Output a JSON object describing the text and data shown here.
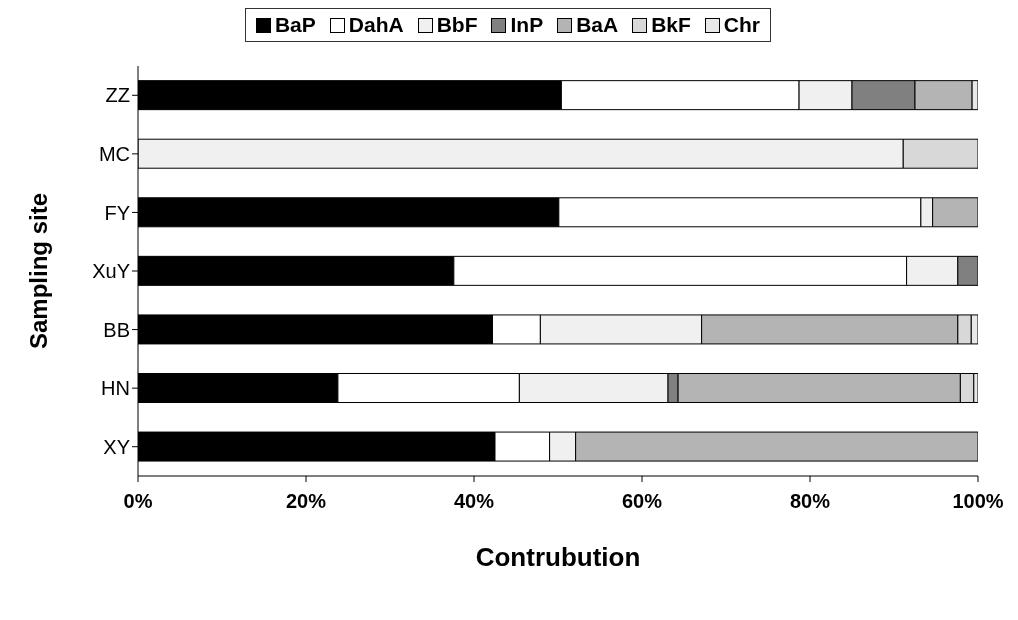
{
  "chart_data": {
    "type": "bar",
    "orientation": "horizontal",
    "stacked": true,
    "xlabel": "Contrubution",
    "ylabel": "Sampling site",
    "categories": [
      "ZZ",
      "MC",
      "FY",
      "XuY",
      "BB",
      "HN",
      "XY"
    ],
    "series": [
      {
        "name": "BaP",
        "color": "#000000",
        "values": [
          50.4,
          null,
          50.1,
          37.6,
          42.2,
          23.8,
          42.5
        ]
      },
      {
        "name": "DahA",
        "color": "#ffffff",
        "values": [
          28.3,
          null,
          43.1,
          53.9,
          5.7,
          21.6,
          6.5
        ]
      },
      {
        "name": "BbF",
        "color": "#f0f0f0",
        "values": [
          6.3,
          91.1,
          1.4,
          6.1,
          19.2,
          17.7,
          3.1
        ]
      },
      {
        "name": "InP",
        "color": "#808080",
        "values": [
          7.5,
          null,
          null,
          2.4,
          null,
          1.2,
          null
        ]
      },
      {
        "name": "BaA",
        "color": "#b4b4b4",
        "values": [
          6.8,
          null,
          5.4,
          null,
          30.5,
          33.6,
          47.9
        ]
      },
      {
        "name": "BkF",
        "color": "#d8d8d8",
        "values": [
          null,
          8.9,
          null,
          null,
          1.6,
          1.6,
          null
        ]
      },
      {
        "name": "Chr",
        "color": "#e8e8e8",
        "values": [
          0.7,
          null,
          null,
          null,
          0.8,
          0.5,
          null
        ]
      }
    ],
    "xlim": [
      0,
      100
    ],
    "xticks": [
      {
        "value": 0,
        "label": "0%"
      },
      {
        "value": 20,
        "label": "20%"
      },
      {
        "value": 40,
        "label": "40%"
      },
      {
        "value": 60,
        "label": "60%"
      },
      {
        "value": 80,
        "label": "80%"
      },
      {
        "value": 100,
        "label": "100%"
      }
    ],
    "legend": "top"
  }
}
